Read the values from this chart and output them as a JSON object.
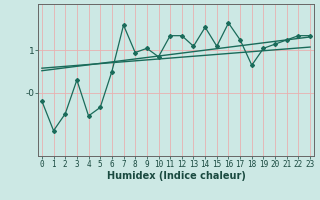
{
  "title": "",
  "xlabel": "Humidex (Indice chaleur)",
  "bg_color": "#cce8e4",
  "line_color": "#1a6b5a",
  "grid_color_v": "#e8b0b0",
  "x_data": [
    0,
    1,
    2,
    3,
    4,
    5,
    6,
    7,
    8,
    9,
    10,
    11,
    12,
    13,
    14,
    15,
    16,
    17,
    18,
    19,
    20,
    21,
    22,
    23
  ],
  "y_main": [
    -0.2,
    -0.9,
    -0.5,
    0.3,
    -0.55,
    -0.35,
    0.5,
    1.6,
    0.95,
    1.05,
    0.85,
    1.35,
    1.35,
    1.1,
    1.55,
    1.1,
    1.65,
    1.25,
    0.65,
    1.05,
    1.15,
    1.25,
    1.35,
    1.35
  ],
  "y_trend1_x": [
    0,
    23
  ],
  "y_trend1_y": [
    0.58,
    1.08
  ],
  "y_trend2_x": [
    0,
    23
  ],
  "y_trend2_y": [
    0.52,
    1.32
  ],
  "xlim": [
    -0.3,
    23.3
  ],
  "ylim": [
    -1.5,
    2.1
  ],
  "xlabel_fontsize": 7,
  "tick_fontsize": 5.5
}
